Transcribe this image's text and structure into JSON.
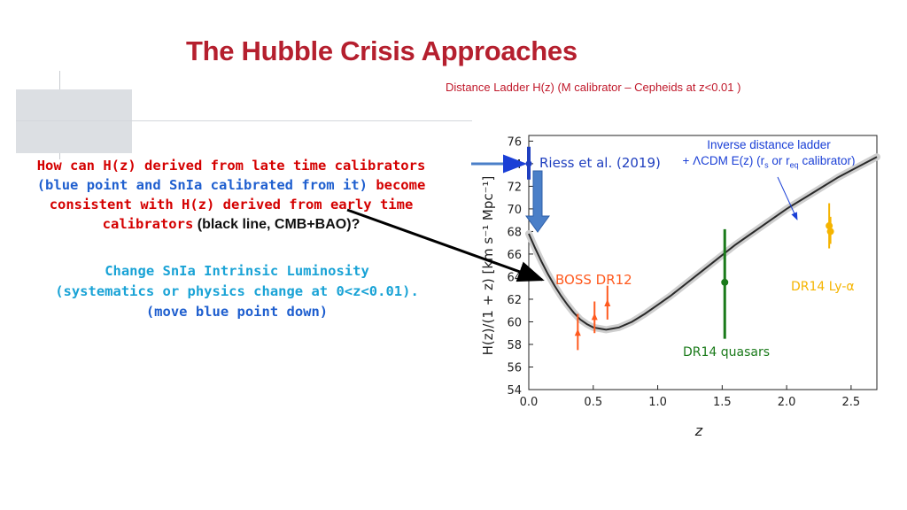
{
  "title": "The Hubble Crisis Approaches",
  "subtitle": "Distance Ladder H(z)  (M calibrator – Cepheids at z<0.01 )",
  "question": {
    "p1": "How can H(z) derived from late time calibrators",
    "p2_open": "(",
    "p2_blue": "blue point and SnIa calibrated from it",
    "p2_close": ")",
    "p2_red": " become",
    "p3": "consistent with H(z) derived from early time",
    "p4_red": "calibrators",
    "p4_black": " (black line, CMB+BAO)?"
  },
  "answer": {
    "line1": "Change SnIa Intrinsic Luminosity",
    "line2": "(systematics or physics change at 0<z<0.01).",
    "line3": "(move blue point down)"
  },
  "annotation": {
    "line1": "Inverse distance ladder",
    "line2_pre": "+ ΛCDM E(z)  (r",
    "sub_s": "s",
    "mid": " or r",
    "sub_eq": "eq",
    "line2_post": " calibrator)"
  },
  "colors": {
    "title": "#b51f2e",
    "riess": "#1f3fbf",
    "boss": "#ff5a1f",
    "quasar": "#1a7a1a",
    "lya": "#f5b400",
    "arrow": "#4a7fc8"
  },
  "chart_data": {
    "type": "scatter",
    "xlabel": "z",
    "ylabel": "H(z)/(1 + z) [km s⁻¹ Mpc⁻¹]",
    "xlim": [
      0.0,
      2.7
    ],
    "ylim": [
      54,
      76.5
    ],
    "xticks": [
      "0.0",
      "0.5",
      "1.0",
      "1.5",
      "2.0",
      "2.5"
    ],
    "xtick_values": [
      0.0,
      0.5,
      1.0,
      1.5,
      2.0,
      2.5
    ],
    "yticks": [
      "54",
      "56",
      "58",
      "60",
      "62",
      "64",
      "66",
      "68",
      "70",
      "72",
      "74",
      "76"
    ],
    "ytick_values": [
      54,
      56,
      58,
      60,
      62,
      64,
      66,
      68,
      70,
      72,
      74,
      76
    ],
    "model_curve": {
      "x": [
        0.0,
        0.05,
        0.1,
        0.15,
        0.2,
        0.25,
        0.3,
        0.35,
        0.4,
        0.45,
        0.5,
        0.55,
        0.6,
        0.65,
        0.7,
        0.8,
        0.9,
        1.0,
        1.1,
        1.2,
        1.3,
        1.4,
        1.5,
        1.6,
        1.7,
        1.8,
        1.9,
        2.0,
        2.1,
        2.2,
        2.3,
        2.4,
        2.5,
        2.6,
        2.7
      ],
      "y": [
        67.8,
        66.5,
        65.3,
        64.2,
        63.2,
        62.3,
        61.5,
        60.8,
        60.2,
        59.8,
        59.5,
        59.4,
        59.3,
        59.4,
        59.5,
        60.0,
        60.7,
        61.5,
        62.3,
        63.2,
        64.1,
        65.0,
        65.9,
        66.8,
        67.6,
        68.4,
        69.2,
        70.0,
        70.7,
        71.4,
        72.1,
        72.8,
        73.4,
        74.0,
        74.6
      ]
    },
    "series": [
      {
        "name": "Riess et al. (2019)",
        "points": [
          {
            "x": 0.0,
            "y": 74.0,
            "ylo": 72.6,
            "yhi": 75.5
          }
        ]
      },
      {
        "name": "BOSS DR12",
        "points": [
          {
            "x": 0.38,
            "y": 59.0,
            "ylo": 57.5,
            "yhi": 60.7
          },
          {
            "x": 0.51,
            "y": 60.4,
            "ylo": 59.0,
            "yhi": 61.8
          },
          {
            "x": 0.61,
            "y": 61.6,
            "ylo": 60.2,
            "yhi": 63.2
          }
        ]
      },
      {
        "name": "DR14 quasars",
        "points": [
          {
            "x": 1.52,
            "y": 63.5,
            "ylo": 58.5,
            "yhi": 68.2
          }
        ]
      },
      {
        "name": "DR14 Ly-α",
        "points": [
          {
            "x": 2.33,
            "y": 68.5,
            "ylo": 66.5,
            "yhi": 70.5
          },
          {
            "x": 2.34,
            "y": 68.0,
            "ylo": 66.9,
            "yhi": 69.3
          }
        ]
      }
    ]
  }
}
